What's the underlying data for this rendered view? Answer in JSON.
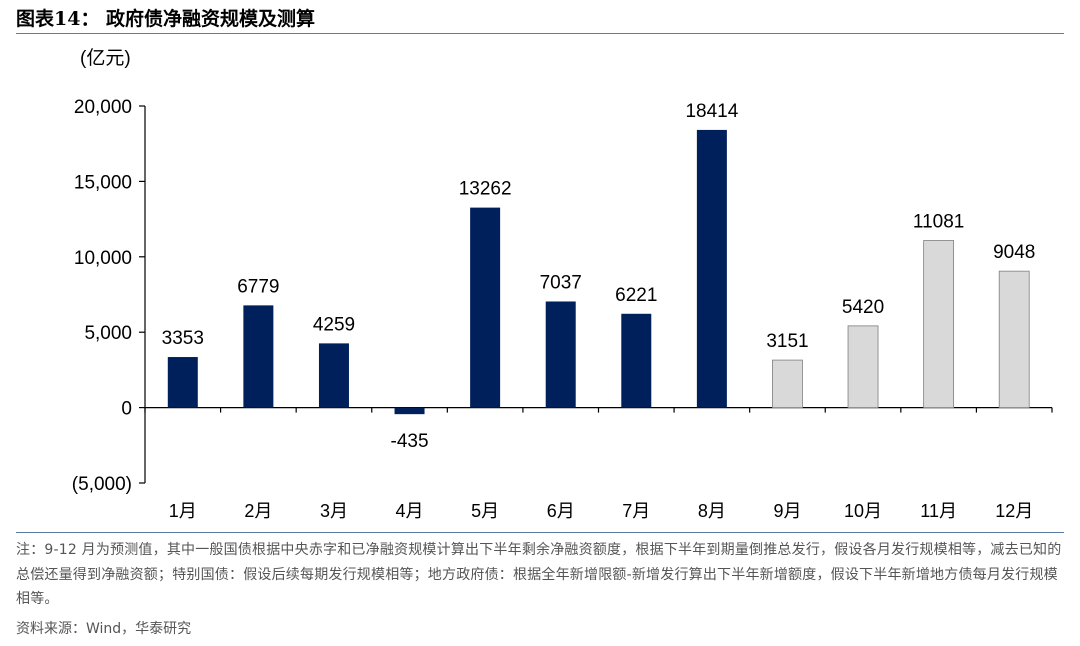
{
  "figure": {
    "title": "图表14：  政府债净融资规模及测算",
    "note": "注：9-12 月为预测值，其中一般国债根据中央赤字和已净融资规模计算出下半年剩余净融资额度，根据下半年到期量倒推总发行，假设各月发行规模相等，减去已知的总偿还量得到净融资额；特别国债：假设后续每期发行规模相等；地方政府债：根据全年新增限额-新增发行算出下半年新增额度，假设下半年新增地方债每月发行规模相等。",
    "source": "资料来源：Wind，华泰研究"
  },
  "colors": {
    "actual": "#00205b",
    "forecast": "#d9d9d9",
    "forecast_border": "#7f7f7f",
    "rule": "#5b7ea8"
  },
  "chart_data": {
    "type": "bar",
    "unit_label": "(亿元)",
    "categories": [
      "1月",
      "2月",
      "3月",
      "4月",
      "5月",
      "6月",
      "7月",
      "8月",
      "9月",
      "10月",
      "11月",
      "12月"
    ],
    "values": [
      3353,
      6779,
      4259,
      -435,
      13262,
      7037,
      6221,
      18414,
      3151,
      5420,
      11081,
      9048
    ],
    "value_labels": [
      "3353",
      "6779",
      "4259",
      "-435",
      "13262",
      "7037",
      "6221",
      "18414",
      "3151",
      "5420",
      "11081",
      "9048"
    ],
    "forecast_flags": [
      false,
      false,
      false,
      false,
      false,
      false,
      false,
      false,
      true,
      true,
      true,
      true
    ],
    "ylim": [
      -5000,
      20000
    ],
    "yticks": [
      -5000,
      0,
      5000,
      10000,
      15000,
      20000
    ],
    "ytick_labels": [
      "(5,000)",
      "0",
      "5,000",
      "10,000",
      "15,000",
      "20,000"
    ],
    "grid": false,
    "legend": "none"
  }
}
